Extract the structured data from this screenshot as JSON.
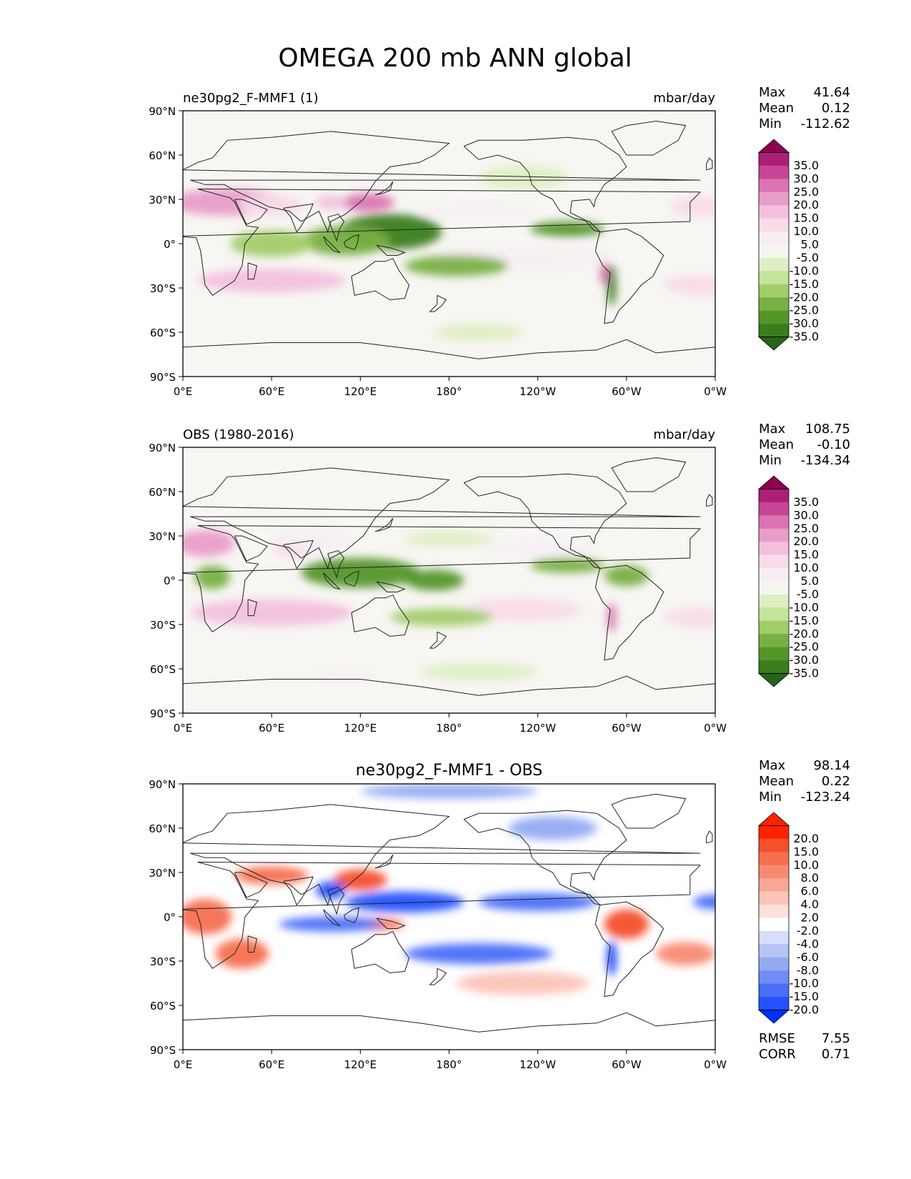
{
  "title": "OMEGA 200 mb ANN global",
  "lat_ticks": [
    "90°N",
    "60°N",
    "30°N",
    "0°",
    "30°S",
    "60°S",
    "90°S"
  ],
  "lon_ticks": [
    "0°E",
    "60°E",
    "120°E",
    "180°",
    "120°W",
    "60°W",
    "0°W"
  ],
  "stat_labels": {
    "max": "Max",
    "mean": "Mean",
    "min": "Min",
    "rmse": "RMSE",
    "corr": "CORR"
  },
  "colors": {
    "piyg": [
      "#276419",
      "#3a7d1e",
      "#54962a",
      "#79b043",
      "#a2cd6b",
      "#c3e49b",
      "#deefc4",
      "#f3f6ed",
      "#f7eef3",
      "#f9dcea",
      "#f3c1de",
      "#e99dc9",
      "#db74b1",
      "#c94596",
      "#ac1f79",
      "#8e0152"
    ],
    "bwr": [
      "#0030ff",
      "#2251ff",
      "#4a6ef8",
      "#6f8df4",
      "#93aaf2",
      "#b5c4f5",
      "#d6defb",
      "#ffffff",
      "#fde0da",
      "#fbc4b8",
      "#f9a795",
      "#f78b72",
      "#f56f50",
      "#f3502d",
      "#ff2200",
      "#ff2200"
    ],
    "ocean": "#f7f6f2",
    "coast": "#222222"
  },
  "panels": [
    {
      "left_title": "ne30pg2_F-MMF1 (1)",
      "center_title": "",
      "right_title": "mbar/day",
      "stats": {
        "max": "41.64",
        "mean": "0.12",
        "min": "-112.62"
      },
      "colormap": "piyg",
      "contour_levels": [
        "35.0",
        "30.0",
        "25.0",
        "20.0",
        "15.0",
        "10.0",
        "5.0",
        "-5.0",
        "-10.0",
        "-15.0",
        "-20.0",
        "-25.0",
        "-30.0",
        "-35.0"
      ],
      "features": [
        {
          "lon": 30,
          "lat": 28,
          "rx": 40,
          "ry": 9,
          "v": 22
        },
        {
          "lon": 60,
          "lat": 26,
          "rx": 22,
          "ry": 7,
          "v": 14
        },
        {
          "lon": 125,
          "lat": 28,
          "rx": 18,
          "ry": 6,
          "v": 26
        },
        {
          "lon": 100,
          "lat": 28,
          "rx": 10,
          "ry": 5,
          "v": 20
        },
        {
          "lon": 60,
          "lat": -25,
          "rx": 50,
          "ry": 8,
          "v": 20
        },
        {
          "lon": 350,
          "lat": 25,
          "rx": 20,
          "ry": 7,
          "v": 15
        },
        {
          "lon": 350,
          "lat": -28,
          "rx": 25,
          "ry": 7,
          "v": 13
        },
        {
          "lon": 230,
          "lat": -10,
          "rx": 60,
          "ry": 8,
          "v": 10
        },
        {
          "lon": 200,
          "lat": 22,
          "rx": 40,
          "ry": 5,
          "v": 6
        },
        {
          "lon": 140,
          "lat": 8,
          "rx": 35,
          "ry": 12,
          "v": -30
        },
        {
          "lon": 110,
          "lat": 2,
          "rx": 30,
          "ry": 10,
          "v": -22
        },
        {
          "lon": 60,
          "lat": 0,
          "rx": 28,
          "ry": 9,
          "v": -15
        },
        {
          "lon": 185,
          "lat": -15,
          "rx": 35,
          "ry": 7,
          "v": -22
        },
        {
          "lon": 260,
          "lat": 10,
          "rx": 25,
          "ry": 5,
          "v": -25
        },
        {
          "lon": 290,
          "lat": -28,
          "rx": 3,
          "ry": 14,
          "v": -30
        },
        {
          "lon": 285,
          "lat": -20,
          "rx": 3,
          "ry": 8,
          "v": 30
        },
        {
          "lon": 200,
          "lat": -60,
          "rx": 30,
          "ry": 6,
          "v": -6
        },
        {
          "lon": 230,
          "lat": 45,
          "rx": 30,
          "ry": 8,
          "v": -6
        }
      ]
    },
    {
      "left_title": "OBS (1980-2016)",
      "center_title": "",
      "right_title": "mbar/day",
      "stats": {
        "max": "108.75",
        "mean": "-0.10",
        "min": "-134.34"
      },
      "colormap": "piyg",
      "contour_levels": [
        "35.0",
        "30.0",
        "25.0",
        "20.0",
        "15.0",
        "10.0",
        "5.0",
        "-5.0",
        "-10.0",
        "-15.0",
        "-20.0",
        "-25.0",
        "-30.0",
        "-35.0"
      ],
      "features": [
        {
          "lon": 15,
          "lat": 25,
          "rx": 20,
          "ry": 9,
          "v": 24
        },
        {
          "lon": 75,
          "lat": 22,
          "rx": 15,
          "ry": 6,
          "v": 14
        },
        {
          "lon": 90,
          "lat": 28,
          "rx": 25,
          "ry": 8,
          "v": 10
        },
        {
          "lon": 60,
          "lat": -22,
          "rx": 55,
          "ry": 9,
          "v": 18
        },
        {
          "lon": 350,
          "lat": -25,
          "rx": 25,
          "ry": 7,
          "v": 12
        },
        {
          "lon": 230,
          "lat": -20,
          "rx": 40,
          "ry": 8,
          "v": 14
        },
        {
          "lon": 240,
          "lat": 22,
          "rx": 40,
          "ry": 5,
          "v": 8
        },
        {
          "lon": 120,
          "lat": 5,
          "rx": 40,
          "ry": 10,
          "v": -26
        },
        {
          "lon": 170,
          "lat": 0,
          "rx": 20,
          "ry": 7,
          "v": -25
        },
        {
          "lon": 175,
          "lat": -25,
          "rx": 35,
          "ry": 6,
          "v": -18
        },
        {
          "lon": 20,
          "lat": 2,
          "rx": 12,
          "ry": 8,
          "v": -22
        },
        {
          "lon": 180,
          "lat": 28,
          "rx": 30,
          "ry": 5,
          "v": -8
        },
        {
          "lon": 260,
          "lat": 10,
          "rx": 25,
          "ry": 5,
          "v": -20
        },
        {
          "lon": 300,
          "lat": 3,
          "rx": 15,
          "ry": 7,
          "v": -24
        },
        {
          "lon": 290,
          "lat": -25,
          "rx": 3,
          "ry": 10,
          "v": 30
        },
        {
          "lon": 200,
          "lat": -62,
          "rx": 40,
          "ry": 6,
          "v": -8
        },
        {
          "lon": 110,
          "lat": -65,
          "rx": 20,
          "ry": 5,
          "v": 10
        }
      ]
    },
    {
      "left_title": "",
      "center_title": "ne30pg2_F-MMF1 - OBS",
      "right_title": "",
      "stats": {
        "max": "98.14",
        "mean": "0.22",
        "min": "-123.24",
        "rmse": "7.55",
        "corr": "0.71"
      },
      "colormap": "bwr",
      "contour_levels": [
        "20.0",
        "15.0",
        "10.0",
        "8.0",
        "6.0",
        "4.0",
        "2.0",
        "-2.0",
        "-4.0",
        "-6.0",
        "-8.0",
        "-10.0",
        "-15.0",
        "-20.0"
      ],
      "features": [
        {
          "lon": 15,
          "lat": 0,
          "rx": 18,
          "ry": 12,
          "v": 14
        },
        {
          "lon": 40,
          "lat": -25,
          "rx": 18,
          "ry": 10,
          "v": 12
        },
        {
          "lon": 60,
          "lat": 28,
          "rx": 25,
          "ry": 6,
          "v": 15
        },
        {
          "lon": 120,
          "lat": 25,
          "rx": 18,
          "ry": 7,
          "v": 18
        },
        {
          "lon": 300,
          "lat": -5,
          "rx": 15,
          "ry": 10,
          "v": 16
        },
        {
          "lon": 340,
          "lat": -25,
          "rx": 20,
          "ry": 8,
          "v": 10
        },
        {
          "lon": 230,
          "lat": -45,
          "rx": 45,
          "ry": 8,
          "v": 6
        },
        {
          "lon": 130,
          "lat": -5,
          "rx": 20,
          "ry": 4,
          "v": 15
        },
        {
          "lon": 100,
          "lat": 18,
          "rx": 10,
          "ry": 6,
          "v": -18
        },
        {
          "lon": 150,
          "lat": 10,
          "rx": 40,
          "ry": 7,
          "v": -18
        },
        {
          "lon": 200,
          "lat": -25,
          "rx": 50,
          "ry": 7,
          "v": -12
        },
        {
          "lon": 240,
          "lat": 10,
          "rx": 40,
          "ry": 6,
          "v": -14
        },
        {
          "lon": 100,
          "lat": -5,
          "rx": 35,
          "ry": 5,
          "v": -10
        },
        {
          "lon": 360,
          "lat": 10,
          "rx": 15,
          "ry": 5,
          "v": -12
        },
        {
          "lon": 290,
          "lat": -28,
          "rx": 3,
          "ry": 12,
          "v": -22
        },
        {
          "lon": 180,
          "lat": 85,
          "rx": 60,
          "ry": 5,
          "v": -6
        },
        {
          "lon": 250,
          "lat": 60,
          "rx": 30,
          "ry": 8,
          "v": -6
        }
      ]
    }
  ]
}
